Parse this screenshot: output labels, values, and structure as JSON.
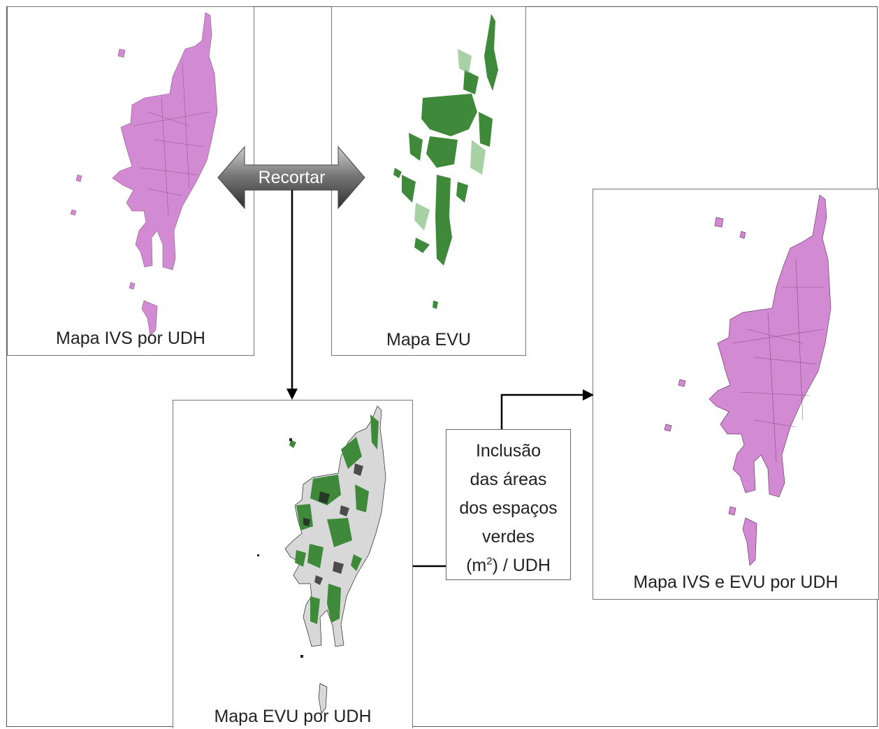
{
  "panels": {
    "ivs_map": {
      "label": "Mapa IVS por  UDH",
      "fill_color": "#d28ad2"
    },
    "evu_map": {
      "label": "Mapa EVU",
      "fill_color": "#3f8a3a"
    },
    "evu_udh_map": {
      "label": "Mapa EVU por UDH",
      "fill_color": "#3f8a3a"
    },
    "ivs_evu_map": {
      "label": "Mapa IVS e EVU por UDH",
      "fill_color": "#d28ad2"
    }
  },
  "process": {
    "recortar_label": "Recortar",
    "inclusion_lines": [
      "Inclusão",
      "das áreas",
      "dos espaços",
      "verdes"
    ],
    "inclusion_unit_pre": "(m",
    "inclusion_unit_sup": "2",
    "inclusion_unit_post": ") / UDH"
  }
}
